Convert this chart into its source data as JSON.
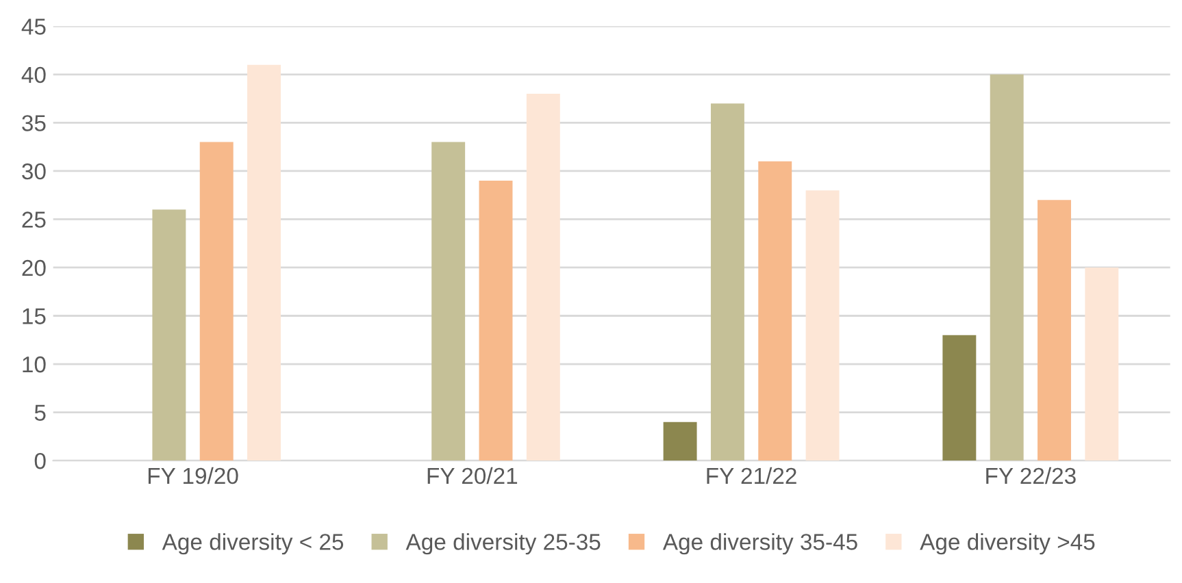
{
  "chart_data": {
    "type": "bar",
    "categories": [
      "FY 19/20",
      "FY 20/21",
      "FY 21/22",
      "FY 22/23"
    ],
    "series": [
      {
        "name": "Age diversity < 25",
        "color": "#8c874f",
        "values": [
          0,
          0,
          4,
          13
        ]
      },
      {
        "name": "Age diversity 25-35",
        "color": "#c5c097",
        "values": [
          26,
          33,
          37,
          40
        ]
      },
      {
        "name": "Age diversity 35-45",
        "color": "#f7b98b",
        "values": [
          33,
          29,
          31,
          27
        ]
      },
      {
        "name": "Age diversity >45",
        "color": "#fde6d6",
        "values": [
          41,
          38,
          28,
          20
        ]
      }
    ],
    "ylim": [
      0,
      45
    ],
    "yticks": [
      0,
      5,
      10,
      15,
      20,
      25,
      30,
      35,
      40,
      45
    ],
    "grid": "y",
    "legend": "bottom"
  }
}
